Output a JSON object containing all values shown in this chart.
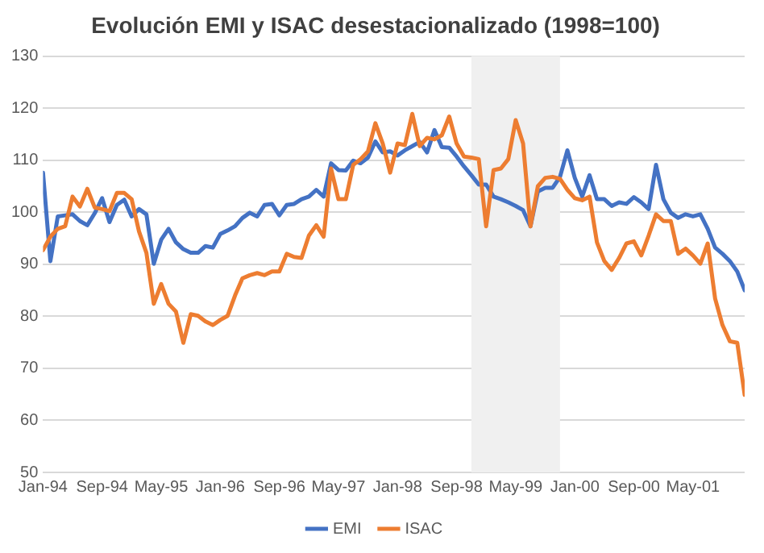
{
  "chart_data": {
    "type": "line",
    "title": "Evolución EMI y ISAC desestacionalizado (1998=100)",
    "x": [
      "1994-01",
      "1994-02",
      "1994-03",
      "1994-04",
      "1994-05",
      "1994-06",
      "1994-07",
      "1994-08",
      "1994-09",
      "1994-10",
      "1994-11",
      "1994-12",
      "1995-01",
      "1995-02",
      "1995-03",
      "1995-04",
      "1995-05",
      "1995-06",
      "1995-07",
      "1995-08",
      "1995-09",
      "1995-10",
      "1995-11",
      "1995-12",
      "1996-01",
      "1996-02",
      "1996-03",
      "1996-04",
      "1996-05",
      "1996-06",
      "1996-07",
      "1996-08",
      "1996-09",
      "1996-10",
      "1996-11",
      "1996-12",
      "1997-01",
      "1997-02",
      "1997-03",
      "1997-04",
      "1997-05",
      "1997-06",
      "1997-07",
      "1997-08",
      "1997-09",
      "1997-10",
      "1997-11",
      "1997-12",
      "1998-01",
      "1998-02",
      "1998-03",
      "1998-04",
      "1998-05",
      "1998-06",
      "1998-07",
      "1998-08",
      "1998-09",
      "1998-10",
      "1998-11",
      "1998-12",
      "1999-01",
      "1999-02",
      "1999-03",
      "1999-04",
      "1999-05",
      "1999-06",
      "1999-07",
      "1999-08",
      "1999-09",
      "1999-10",
      "1999-11",
      "1999-12",
      "2000-01",
      "2000-02",
      "2000-03",
      "2000-04",
      "2000-05",
      "2000-06",
      "2000-07",
      "2000-08",
      "2000-09",
      "2000-10",
      "2000-11",
      "2000-12",
      "2001-01",
      "2001-02",
      "2001-03",
      "2001-04",
      "2001-05",
      "2001-06",
      "2001-07",
      "2001-08",
      "2001-09",
      "2001-10",
      "2001-11",
      "2001-12"
    ],
    "series": [
      {
        "name": "EMI",
        "color": "#4472c4",
        "values": [
          107.6,
          90.6,
          99.2,
          99.4,
          99.6,
          98.3,
          97.5,
          99.8,
          102.7,
          98.1,
          101.4,
          102.4,
          99.2,
          100.6,
          99.6,
          90.1,
          94.7,
          96.8,
          94.2,
          92.9,
          92.2,
          92.2,
          93.5,
          93.2,
          95.8,
          96.5,
          97.3,
          98.9,
          99.9,
          99.2,
          101.4,
          101.6,
          99.4,
          101.4,
          101.6,
          102.5,
          103.0,
          104.3,
          103.0,
          109.4,
          108.1,
          108.0,
          109.9,
          109.4,
          110.5,
          113.6,
          111.5,
          111.7,
          110.9,
          111.9,
          112.7,
          113.5,
          111.5,
          115.8,
          112.5,
          112.4,
          110.7,
          108.8,
          107.1,
          105.3,
          105.3,
          103.0,
          102.5,
          101.9,
          101.2,
          100.4,
          97.3,
          104.0,
          104.7,
          104.7,
          106.8,
          111.9,
          106.6,
          103.0,
          107.1,
          102.5,
          102.5,
          101.2,
          101.9,
          101.6,
          102.9,
          101.9,
          100.6,
          109.1,
          102.5,
          99.9,
          98.9,
          99.6,
          99.2,
          99.6,
          96.8,
          93.2,
          92.0,
          90.6,
          88.6,
          85.0
        ]
      },
      {
        "name": "ISAC",
        "color": "#ed7d31",
        "values": [
          92.7,
          95.3,
          96.8,
          97.3,
          103.0,
          101.1,
          104.5,
          100.9,
          100.6,
          100.2,
          103.7,
          103.7,
          102.5,
          96.3,
          92.2,
          82.4,
          86.2,
          82.4,
          80.9,
          74.9,
          80.4,
          80.1,
          79.0,
          78.3,
          79.3,
          80.1,
          84.0,
          87.3,
          87.9,
          88.3,
          87.9,
          88.6,
          88.6,
          92.0,
          91.4,
          91.2,
          95.5,
          97.5,
          95.3,
          108.4,
          102.5,
          102.5,
          109.1,
          110.2,
          111.7,
          117.1,
          113.2,
          107.6,
          113.2,
          112.9,
          118.9,
          112.7,
          114.3,
          114.0,
          114.8,
          118.4,
          113.2,
          110.7,
          110.5,
          110.2,
          97.3,
          108.1,
          108.4,
          110.2,
          117.7,
          113.2,
          97.3,
          105.0,
          106.6,
          106.8,
          106.4,
          104.3,
          102.7,
          102.3,
          103.0,
          94.2,
          90.6,
          88.9,
          91.2,
          94.0,
          94.4,
          91.7,
          95.5,
          99.6,
          98.3,
          98.3,
          92.0,
          93.0,
          91.7,
          90.1,
          94.0,
          83.4,
          78.3,
          75.2,
          74.9,
          64.9
        ]
      }
    ],
    "xlim": [
      "1994-01",
      "2001-12"
    ],
    "xticks": [
      {
        "value": "1994-01",
        "label": "Jan-94"
      },
      {
        "value": "1994-09",
        "label": "Sep-94"
      },
      {
        "value": "1995-05",
        "label": "May-95"
      },
      {
        "value": "1996-01",
        "label": "Jan-96"
      },
      {
        "value": "1996-09",
        "label": "Sep-96"
      },
      {
        "value": "1997-05",
        "label": "May-97"
      },
      {
        "value": "1998-01",
        "label": "Jan-98"
      },
      {
        "value": "1998-09",
        "label": "Sep-98"
      },
      {
        "value": "1999-05",
        "label": "May-99"
      },
      {
        "value": "2000-01",
        "label": "Jan-00"
      },
      {
        "value": "2000-09",
        "label": "Sep-00"
      },
      {
        "value": "2001-05",
        "label": "May-01"
      }
    ],
    "ylim": [
      50,
      130
    ],
    "yticks": [
      50,
      60,
      70,
      80,
      90,
      100,
      110,
      120,
      130
    ],
    "bands": [
      {
        "axis": "x",
        "from": "1998-11",
        "to": "1999-11",
        "color": "#f0f0f0"
      }
    ],
    "grid": "y",
    "legend": "bottom",
    "marker": "none"
  }
}
